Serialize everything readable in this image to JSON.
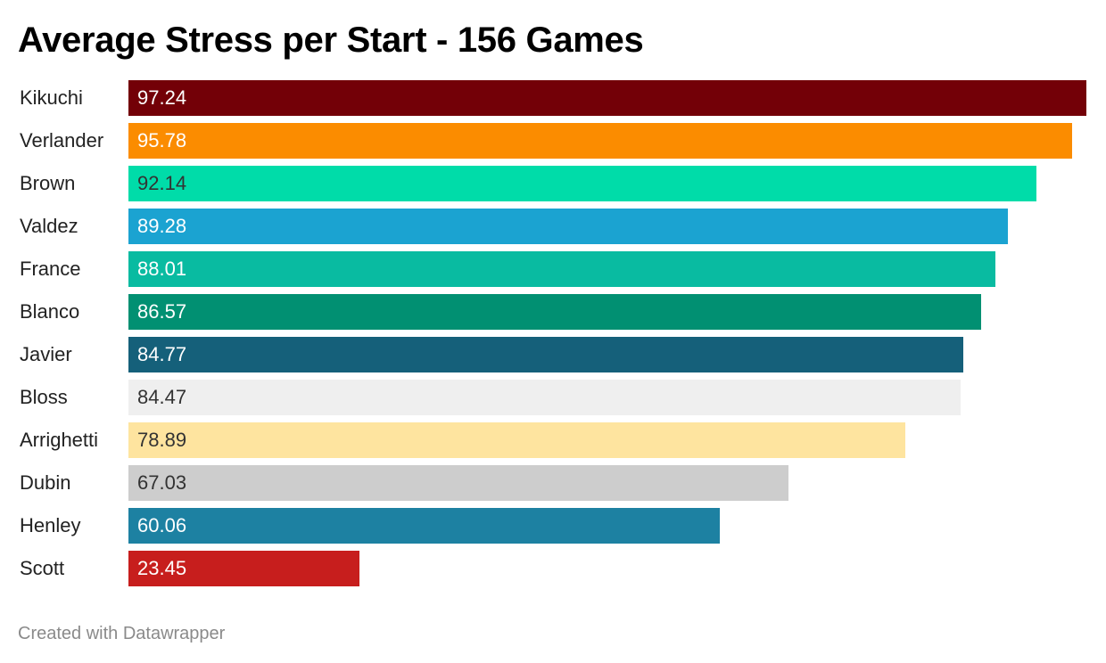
{
  "header": {
    "title": "Average Stress per Start - 156 Games"
  },
  "footer": {
    "credit": "Created with Datawrapper"
  },
  "chart_data": {
    "type": "bar",
    "orientation": "horizontal",
    "title": "Average Stress per Start - 156 Games",
    "xlabel": "",
    "ylabel": "",
    "xlim": [
      0,
      97.24
    ],
    "grid": false,
    "legend": "none",
    "categories": [
      "Kikuchi",
      "Verlander",
      "Brown",
      "Valdez",
      "France",
      "Blanco",
      "Javier",
      "Bloss",
      "Arrighetti",
      "Dubin",
      "Henley",
      "Scott"
    ],
    "values": [
      97.24,
      95.78,
      92.14,
      89.28,
      88.01,
      86.57,
      84.77,
      84.47,
      78.89,
      67.03,
      60.06,
      23.45
    ],
    "value_labels": [
      "97.24",
      "95.78",
      "92.14",
      "89.28",
      "88.01",
      "86.57",
      "84.77",
      "84.47",
      "78.89",
      "67.03",
      "60.06",
      "23.45"
    ],
    "colors": [
      "#730007",
      "#fb8c00",
      "#00dca9",
      "#1ba3d1",
      "#09bba1",
      "#019072",
      "#15607a",
      "#efefef",
      "#fee49f",
      "#cdcdcd",
      "#1d81a2",
      "#c71e1d"
    ],
    "label_colors": [
      "#ffffff",
      "#ffffff",
      "#333333",
      "#ffffff",
      "#ffffff",
      "#ffffff",
      "#ffffff",
      "#333333",
      "#333333",
      "#333333",
      "#ffffff",
      "#ffffff"
    ]
  }
}
